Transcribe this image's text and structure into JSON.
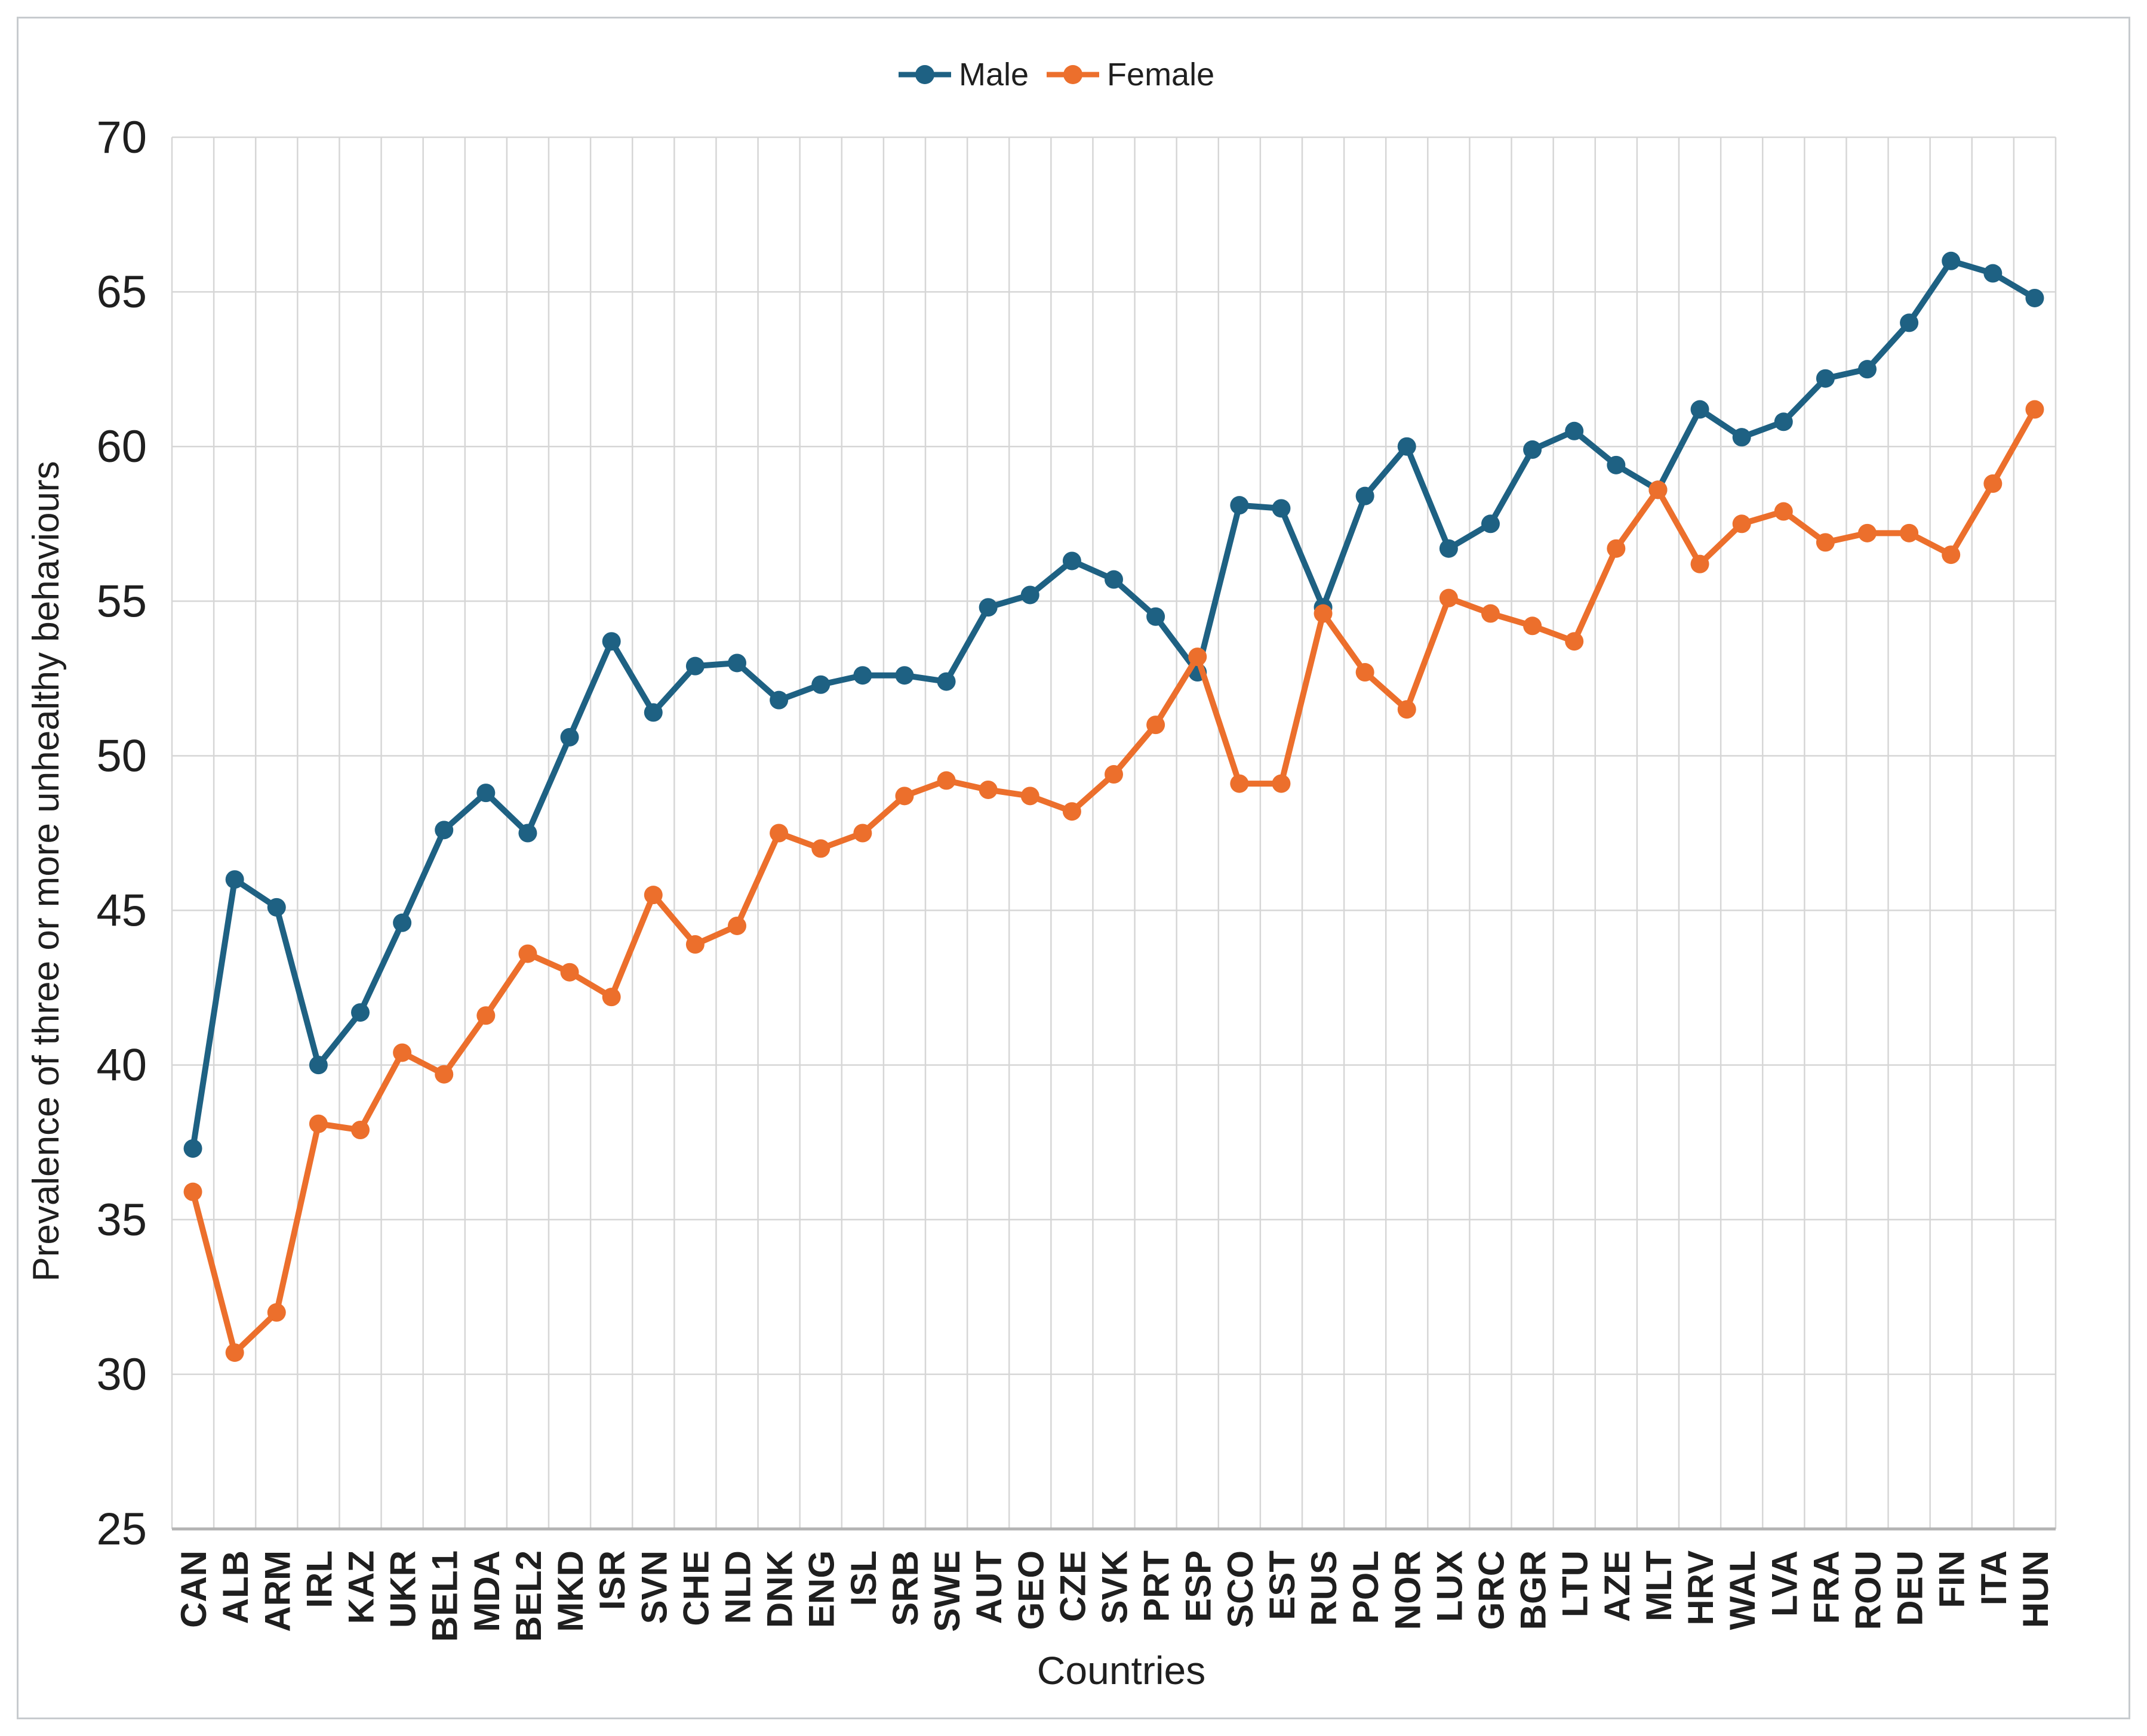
{
  "figure": {
    "type_note": "single line chart figure"
  },
  "legend": {
    "position": "top-center"
  },
  "chart_data": {
    "type": "line",
    "title": "",
    "xlabel": "Countries",
    "ylabel": "Prevalence of three or more unhealthy behaviours",
    "ylim": [
      25,
      70
    ],
    "y_ticks": [
      70,
      65,
      60,
      55,
      50,
      45,
      40,
      35,
      30,
      25
    ],
    "grid": "both",
    "legend_position": "top-center",
    "categories": [
      "CAN",
      "ALB",
      "ARM",
      "IRL",
      "KAZ",
      "UKR",
      "BEL1",
      "MDA",
      "BEL2",
      "MKD",
      "ISR",
      "SVN",
      "CHE",
      "NLD",
      "DNK",
      "ENG",
      "ISL",
      "SRB",
      "SWE",
      "AUT",
      "GEO",
      "CZE",
      "SVK",
      "PRT",
      "ESP",
      "SCO",
      "EST",
      "RUS",
      "POL",
      "NOR",
      "LUX",
      "GRC",
      "BGR",
      "LTU",
      "AZE",
      "MLT",
      "HRV",
      "WAL",
      "LVA",
      "FRA",
      "ROU",
      "DEU",
      "FIN",
      "ITA",
      "HUN"
    ],
    "series": [
      {
        "name": "Male",
        "color": "#1e6183",
        "values": [
          37.3,
          46.0,
          45.1,
          40.0,
          41.7,
          44.6,
          47.6,
          48.8,
          47.5,
          50.6,
          53.7,
          51.4,
          52.9,
          53.0,
          51.8,
          52.3,
          52.6,
          52.6,
          52.4,
          54.8,
          55.2,
          56.3,
          55.7,
          54.5,
          52.7,
          58.1,
          58.0,
          54.8,
          58.4,
          60.0,
          56.7,
          57.5,
          59.9,
          60.5,
          59.4,
          58.6,
          61.2,
          60.3,
          60.8,
          62.2,
          62.5,
          64.0,
          66.0,
          65.6,
          64.8
        ]
      },
      {
        "name": "Female",
        "color": "#ec6f2c",
        "values": [
          35.9,
          30.7,
          32.0,
          38.1,
          37.9,
          40.4,
          39.7,
          41.6,
          43.6,
          43.0,
          42.2,
          45.5,
          43.9,
          44.5,
          47.5,
          47.0,
          47.5,
          48.7,
          49.2,
          48.9,
          48.7,
          48.2,
          49.4,
          51.0,
          53.2,
          49.1,
          49.1,
          54.6,
          52.7,
          51.5,
          55.1,
          54.6,
          54.2,
          53.7,
          56.7,
          58.6,
          56.2,
          57.5,
          57.9,
          56.9,
          57.2,
          57.2,
          56.5,
          58.8,
          61.2
        ]
      }
    ]
  }
}
